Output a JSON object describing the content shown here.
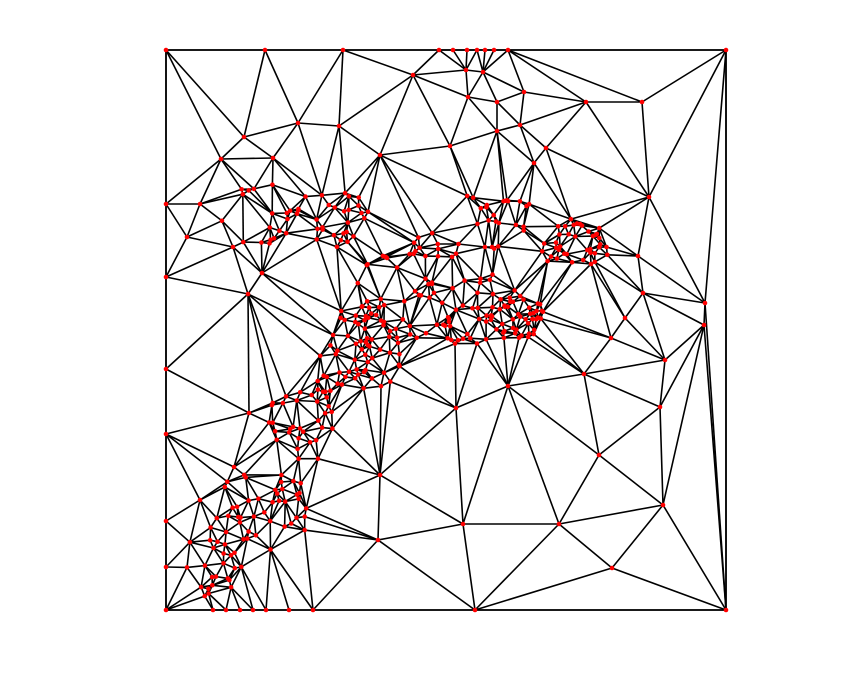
{
  "figure": {
    "kind": "triangulated mesh",
    "edge_color": "#000000",
    "node_color": "#ff0000",
    "background": "#ffffff"
  }
}
